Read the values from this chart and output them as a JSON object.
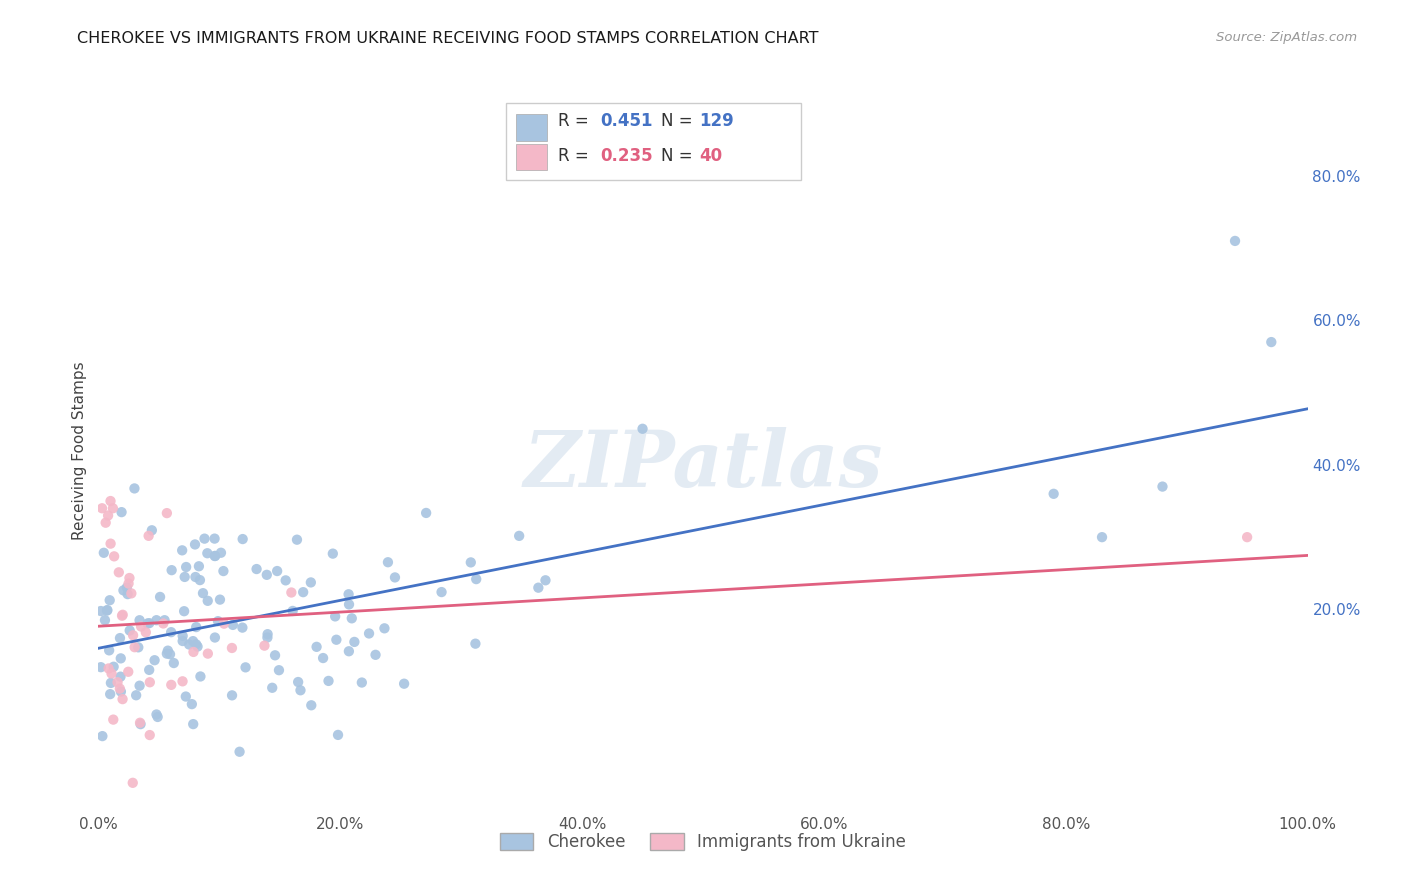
{
  "title": "CHEROKEE VS IMMIGRANTS FROM UKRAINE RECEIVING FOOD STAMPS CORRELATION CHART",
  "source": "Source: ZipAtlas.com",
  "ylabel": "Receiving Food Stamps",
  "xlim": [
    0.0,
    1.0
  ],
  "ylim": [
    -0.08,
    0.92
  ],
  "xtick_vals": [
    0.0,
    0.2,
    0.4,
    0.6,
    0.8,
    1.0
  ],
  "xticklabels": [
    "0.0%",
    "20.0%",
    "40.0%",
    "60.0%",
    "80.0%",
    "100.0%"
  ],
  "right_ytick_vals": [
    0.0,
    0.2,
    0.4,
    0.6,
    0.8
  ],
  "right_yticklabels": [
    "",
    "20.0%",
    "40.0%",
    "60.0%",
    "80.0%"
  ],
  "cherokee_color": "#a8c4e0",
  "ukraine_color": "#f4b8c8",
  "cherokee_line_color": "#4472c4",
  "ukraine_line_color": "#e06080",
  "r_cherokee": 0.451,
  "n_cherokee": 129,
  "r_ukraine": 0.235,
  "n_ukraine": 40,
  "watermark": "ZIPatlas",
  "cherokee_label": "Cherokee",
  "ukraine_label": "Immigrants from Ukraine"
}
